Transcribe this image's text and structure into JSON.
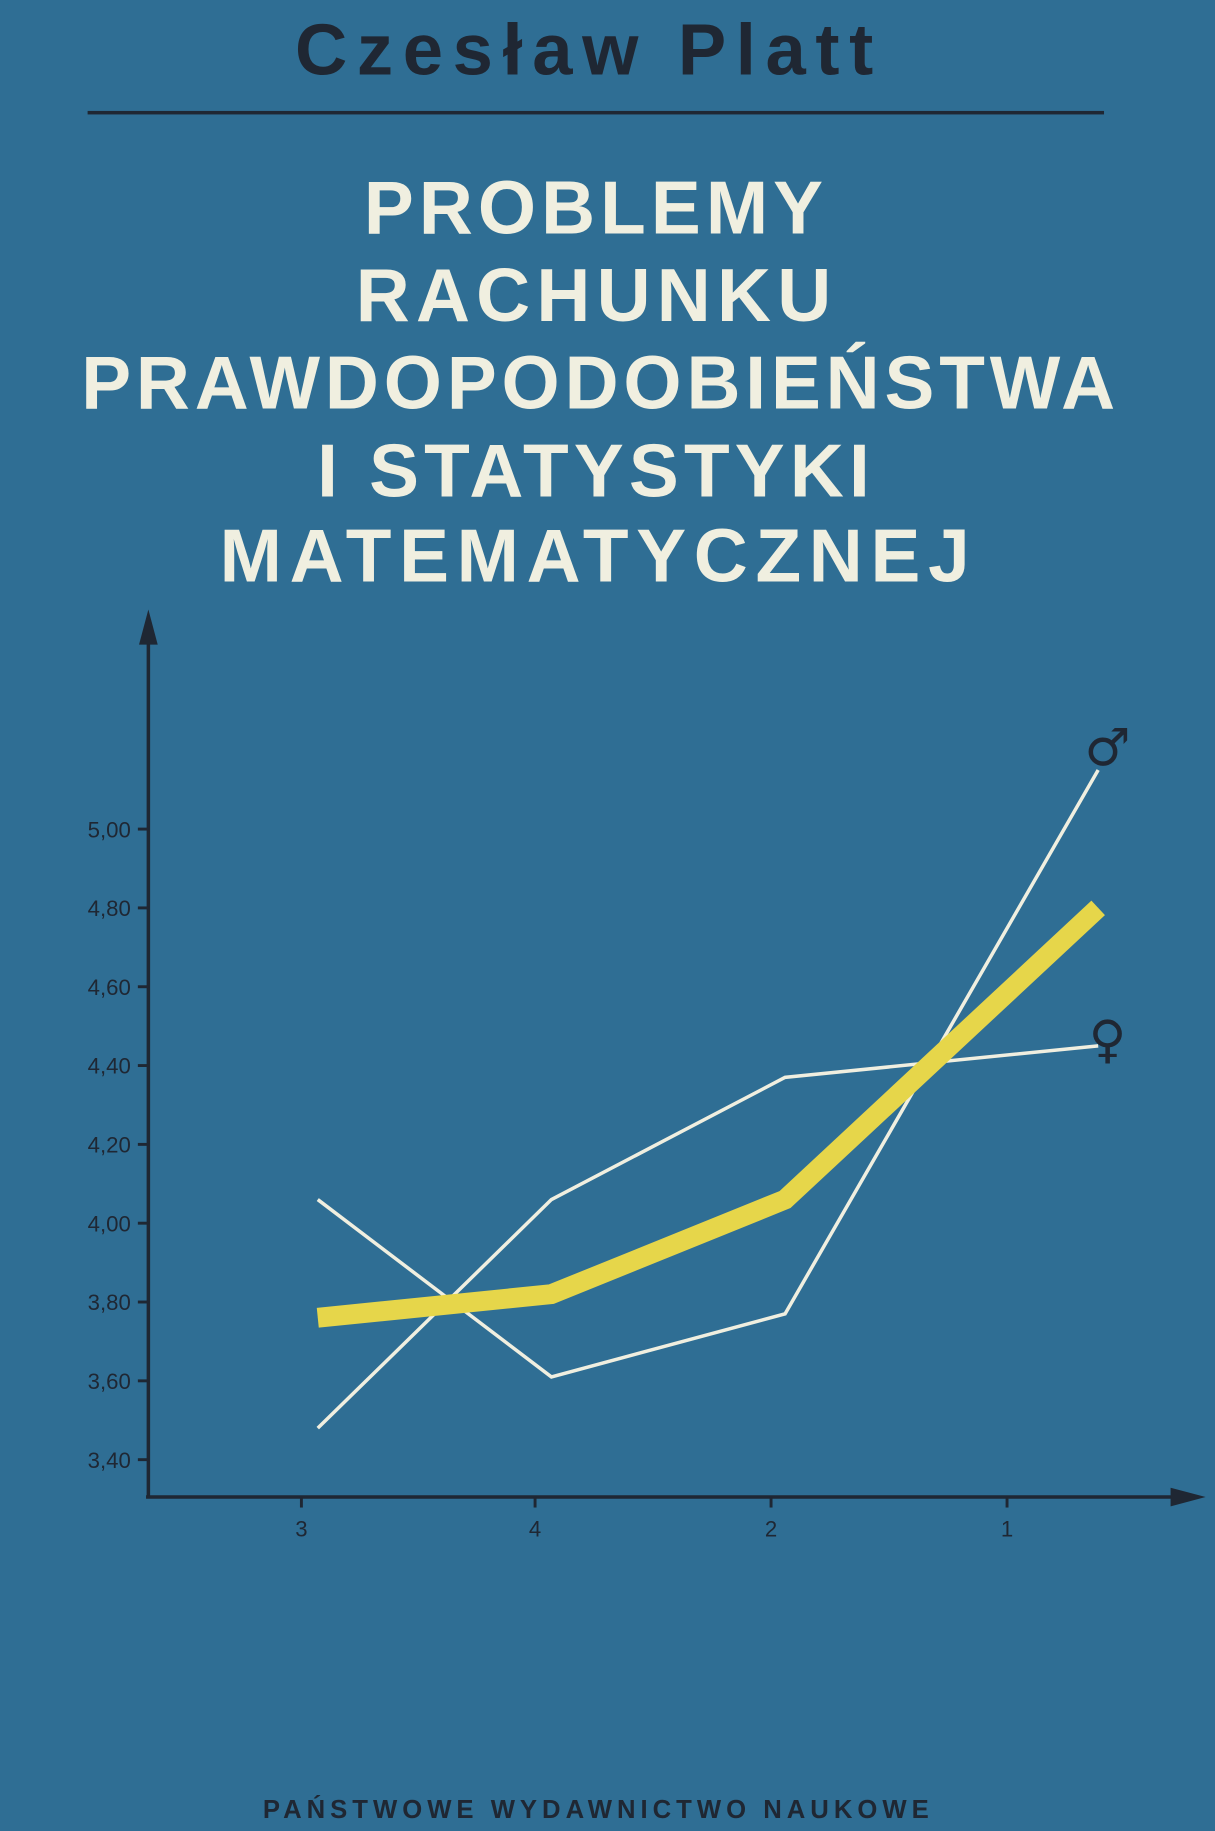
{
  "cover": {
    "author": "Czesław Platt",
    "title_lines": [
      "PROBLEMY",
      "RACHUNKU",
      "PRAWDOPODOBIEŃSTWA",
      "I STATYSTYKI",
      "MATEMATYCZNEJ"
    ],
    "publisher": "PAŃSTWOWE WYDAWNICTWO NAUKOWE",
    "colors": {
      "background": "#2f6e94",
      "title": "#f0efe0",
      "ink": "#1f2733",
      "highlight": "#e6d64a"
    }
  },
  "chart_data": {
    "type": "line",
    "categories": [
      "3",
      "4",
      "2",
      "1"
    ],
    "ylim": [
      3.3,
      5.5
    ],
    "y_ticks": [
      "3,40",
      "3,60",
      "3,80",
      "4,00",
      "4,20",
      "4,40",
      "4,60",
      "4,80",
      "5,00"
    ],
    "grid": false,
    "series": [
      {
        "name": "",
        "color": "#e6d64a",
        "values": [
          3.76,
          3.82,
          4.06,
          4.8
        ]
      },
      {
        "name": "♂",
        "color": "#f0efe0",
        "values": [
          4.06,
          3.61,
          3.77,
          5.15
        ]
      },
      {
        "name": "♀",
        "color": "#f0efe0",
        "values": [
          3.48,
          4.06,
          4.37,
          4.45
        ]
      }
    ]
  }
}
